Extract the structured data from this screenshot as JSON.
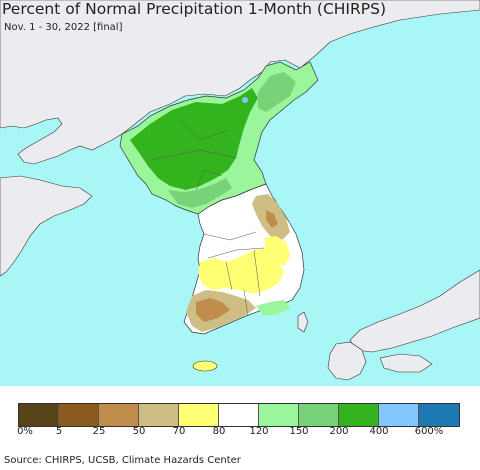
{
  "title": "Percent of Normal Precipitation 1-Month (CHIRPS)",
  "subtitle": "Nov. 1 - 30, 2022 [final]",
  "source": "Source: CHIRPS, UCSB, Climate Hazards Center",
  "colors": {
    "ocean": "#a9f6f6",
    "land_outside": "#ecebef",
    "border": "#333333"
  },
  "legend": {
    "colors": [
      "#574318",
      "#8b5a1f",
      "#c08d4c",
      "#cfbd86",
      "#ffff73",
      "#ffffff",
      "#9bf59b",
      "#78d278",
      "#33b41e",
      "#82c8ff",
      "#1e78b4"
    ],
    "labels": [
      "0%",
      "5",
      "25",
      "50",
      "70",
      "80",
      "120",
      "150",
      "200",
      "400",
      "600%"
    ]
  }
}
